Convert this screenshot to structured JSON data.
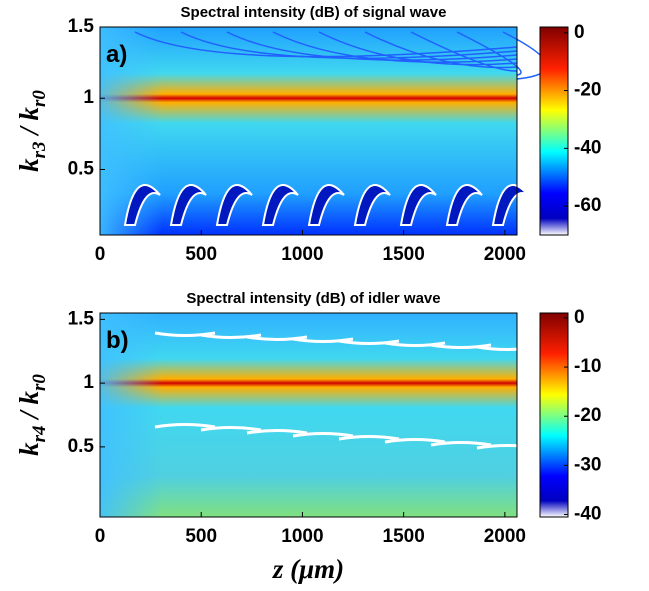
{
  "chart_data": [
    {
      "type": "heatmap",
      "title": "Spectral intensity (dB) of signal wave",
      "panel_label": "a)",
      "ylabel": [
        "k",
        "r3",
        " / k",
        "r0"
      ],
      "xlim": [
        0,
        2060
      ],
      "xticks": [
        0,
        500,
        1000,
        1500,
        2000
      ],
      "ylim": [
        0.04,
        1.5
      ],
      "yticks": [
        0.5,
        1,
        1.5
      ],
      "clim": [
        -70,
        2
      ],
      "cticks": [
        0,
        -20,
        -40,
        -60
      ]
    },
    {
      "type": "heatmap",
      "title": "Spectral intensity (dB) of idler wave",
      "panel_label": "b)",
      "ylabel": [
        "k",
        "r4",
        " / k",
        "r0"
      ],
      "xlabel": "z (μm)",
      "xlim": [
        0,
        2060
      ],
      "xticks": [
        0,
        500,
        1000,
        1500,
        2000
      ],
      "ylim": [
        -0.05,
        1.55
      ],
      "yticks": [
        0.5,
        1,
        1.5
      ],
      "clim": [
        -40.5,
        1
      ],
      "cticks": [
        0,
        -10,
        -20,
        -30,
        -40
      ]
    }
  ]
}
